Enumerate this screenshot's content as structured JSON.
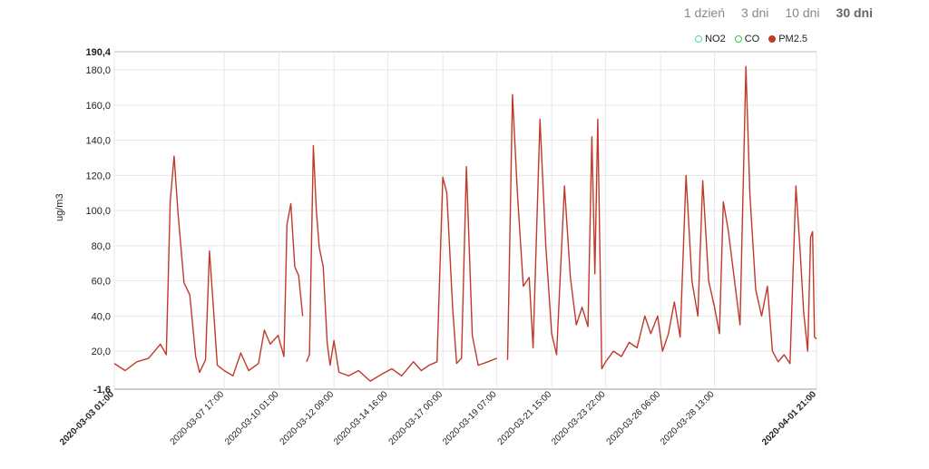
{
  "range_tabs": [
    {
      "label": "1 dzień",
      "active": false
    },
    {
      "label": "3 dni",
      "active": false
    },
    {
      "label": "10 dni",
      "active": false
    },
    {
      "label": "30 dni",
      "active": true
    }
  ],
  "chart_data": {
    "type": "line",
    "ylabel": "ug/m3",
    "ylim": [
      -1.6,
      190.4
    ],
    "y_ticks": [
      "-1,6",
      "20,0",
      "40,0",
      "60,0",
      "80,0",
      "100,0",
      "120,0",
      "140,0",
      "160,0",
      "180,0",
      "190,4"
    ],
    "x_range": [
      "2020-03-03 01:00",
      "2020-04-01 21:00"
    ],
    "x_ticks": [
      "2020-03-03 01:00",
      "2020-03-07 17:00",
      "2020-03-10 01:00",
      "2020-03-12 09:00",
      "2020-03-14 16:00",
      "2020-03-17 00:00",
      "2020-03-19 07:00",
      "2020-03-21 15:00",
      "2020-03-23 22:00",
      "2020-03-26 06:00",
      "2020-03-28 13:00",
      "2020-04-01 21:00"
    ],
    "grid": true,
    "legend_position": "top-right",
    "legend": [
      {
        "name": "NO2",
        "color": "#4fd1c5",
        "style": "hollow"
      },
      {
        "name": "CO",
        "color": "#2ecc40",
        "style": "hollow"
      },
      {
        "name": "PM2.5",
        "color": "#c0392b",
        "style": "filled"
      }
    ],
    "series": [
      {
        "name": "PM2.5",
        "color": "#c0392b",
        "points": [
          [
            "2020-03-03 01:00",
            13
          ],
          [
            "2020-03-03 12:00",
            9
          ],
          [
            "2020-03-04 00:00",
            14
          ],
          [
            "2020-03-04 12:00",
            16
          ],
          [
            "2020-03-05 00:00",
            24
          ],
          [
            "2020-03-05 06:00",
            18
          ],
          [
            "2020-03-05 10:00",
            105
          ],
          [
            "2020-03-05 14:00",
            131
          ],
          [
            "2020-03-05 18:00",
            98
          ],
          [
            "2020-03-06 00:00",
            59
          ],
          [
            "2020-03-06 06:00",
            52
          ],
          [
            "2020-03-06 12:00",
            17
          ],
          [
            "2020-03-06 16:00",
            8
          ],
          [
            "2020-03-06 22:00",
            15
          ],
          [
            "2020-03-07 02:00",
            77
          ],
          [
            "2020-03-07 06:00",
            45
          ],
          [
            "2020-03-07 10:00",
            12
          ],
          [
            "2020-03-07 17:00",
            9
          ],
          [
            "2020-03-08 02:00",
            6
          ],
          [
            "2020-03-08 10:00",
            19
          ],
          [
            "2020-03-08 18:00",
            9
          ],
          [
            "2020-03-09 04:00",
            13
          ],
          [
            "2020-03-09 10:00",
            32
          ],
          [
            "2020-03-09 16:00",
            24
          ],
          [
            "2020-03-10 00:00",
            29
          ],
          [
            "2020-03-10 06:00",
            17
          ],
          [
            "2020-03-10 09:00",
            92
          ],
          [
            "2020-03-10 13:00",
            104
          ],
          [
            "2020-03-10 17:00",
            68
          ],
          [
            "2020-03-10 21:00",
            63
          ],
          [
            "2020-03-11 01:00",
            40
          ],
          [
            "2020-03-11 02:00",
            null
          ],
          [
            "2020-03-11 05:00",
            14
          ],
          [
            "2020-03-11 08:00",
            18
          ],
          [
            "2020-03-11 12:00",
            137
          ],
          [
            "2020-03-11 15:00",
            100
          ],
          [
            "2020-03-11 18:00",
            79
          ],
          [
            "2020-03-11 22:00",
            68
          ],
          [
            "2020-03-12 02:00",
            25
          ],
          [
            "2020-03-12 05:00",
            12
          ],
          [
            "2020-03-12 09:00",
            26
          ],
          [
            "2020-03-12 14:00",
            8
          ],
          [
            "2020-03-13 00:00",
            6
          ],
          [
            "2020-03-13 10:00",
            9
          ],
          [
            "2020-03-13 22:00",
            3
          ],
          [
            "2020-03-14 10:00",
            7
          ],
          [
            "2020-03-14 20:00",
            10
          ],
          [
            "2020-03-15 06:00",
            6
          ],
          [
            "2020-03-15 18:00",
            14
          ],
          [
            "2020-03-16 02:00",
            9
          ],
          [
            "2020-03-16 10:00",
            12
          ],
          [
            "2020-03-16 18:00",
            14
          ],
          [
            "2020-03-17 00:00",
            119
          ],
          [
            "2020-03-17 04:00",
            110
          ],
          [
            "2020-03-17 10:00",
            45
          ],
          [
            "2020-03-17 14:00",
            13
          ],
          [
            "2020-03-17 19:00",
            16
          ],
          [
            "2020-03-18 00:00",
            125
          ],
          [
            "2020-03-18 06:00",
            29
          ],
          [
            "2020-03-18 12:00",
            12
          ],
          [
            "2020-03-18 22:00",
            14
          ],
          [
            "2020-03-19 07:00",
            16
          ],
          [
            "2020-03-19 08:00",
            null
          ],
          [
            "2020-03-19 18:00",
            15
          ],
          [
            "2020-03-19 23:00",
            166
          ],
          [
            "2020-03-20 04:00",
            110
          ],
          [
            "2020-03-20 10:00",
            57
          ],
          [
            "2020-03-20 16:00",
            62
          ],
          [
            "2020-03-20 20:00",
            22
          ],
          [
            "2020-03-21 03:00",
            152
          ],
          [
            "2020-03-21 09:00",
            80
          ],
          [
            "2020-03-21 15:00",
            30
          ],
          [
            "2020-03-21 20:00",
            18
          ],
          [
            "2020-03-22 04:00",
            114
          ],
          [
            "2020-03-22 10:00",
            62
          ],
          [
            "2020-03-22 16:00",
            35
          ],
          [
            "2020-03-22 22:00",
            45
          ],
          [
            "2020-03-23 04:00",
            34
          ],
          [
            "2020-03-23 08:00",
            142
          ],
          [
            "2020-03-23 11:00",
            64
          ],
          [
            "2020-03-23 14:00",
            152
          ],
          [
            "2020-03-23 18:00",
            10
          ],
          [
            "2020-03-23 22:00",
            14
          ],
          [
            "2020-03-24 06:00",
            20
          ],
          [
            "2020-03-24 14:00",
            17
          ],
          [
            "2020-03-24 22:00",
            25
          ],
          [
            "2020-03-25 06:00",
            22
          ],
          [
            "2020-03-25 14:00",
            40
          ],
          [
            "2020-03-25 20:00",
            30
          ],
          [
            "2020-03-26 03:00",
            40
          ],
          [
            "2020-03-26 08:00",
            20
          ],
          [
            "2020-03-26 14:00",
            30
          ],
          [
            "2020-03-26 20:00",
            48
          ],
          [
            "2020-03-27 02:00",
            28
          ],
          [
            "2020-03-27 08:00",
            120
          ],
          [
            "2020-03-27 14:00",
            60
          ],
          [
            "2020-03-27 20:00",
            40
          ],
          [
            "2020-03-28 01:00",
            117
          ],
          [
            "2020-03-28 07:00",
            60
          ],
          [
            "2020-03-28 13:00",
            45
          ],
          [
            "2020-03-28 18:00",
            30
          ],
          [
            "2020-03-28 22:00",
            105
          ],
          [
            "2020-03-29 03:00",
            89
          ],
          [
            "2020-03-29 09:00",
            62
          ],
          [
            "2020-03-29 15:00",
            35
          ],
          [
            "2020-03-29 21:00",
            182
          ],
          [
            "2020-03-30 01:00",
            110
          ],
          [
            "2020-03-30 07:00",
            55
          ],
          [
            "2020-03-30 13:00",
            40
          ],
          [
            "2020-03-30 19:00",
            57
          ],
          [
            "2020-03-31 00:00",
            20
          ],
          [
            "2020-03-31 06:00",
            14
          ],
          [
            "2020-03-31 12:00",
            18
          ],
          [
            "2020-03-31 18:00",
            13
          ],
          [
            "2020-04-01 00:00",
            114
          ],
          [
            "2020-04-01 04:00",
            80
          ],
          [
            "2020-04-01 08:00",
            42
          ],
          [
            "2020-04-01 12:00",
            20
          ],
          [
            "2020-04-01 15:00",
            85
          ],
          [
            "2020-04-01 17:00",
            88
          ],
          [
            "2020-04-01 19:00",
            28
          ],
          [
            "2020-04-01 21:00",
            27
          ]
        ]
      }
    ]
  }
}
